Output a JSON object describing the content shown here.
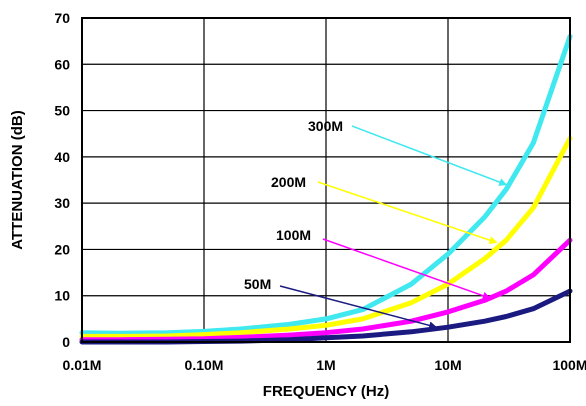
{
  "chart_data": {
    "type": "line",
    "title": "",
    "xlabel": "FREQUENCY (Hz)",
    "ylabel": "ATTENUATION (dB)",
    "x_scale": "log",
    "x_ticks": [
      0.01,
      0.1,
      1,
      10,
      100
    ],
    "x_tick_labels": [
      "0.01M",
      "0.10M",
      "1M",
      "10M",
      "100M"
    ],
    "xlim": [
      0.01,
      100
    ],
    "y_ticks": [
      0,
      10,
      20,
      30,
      40,
      50,
      60,
      70
    ],
    "y_tick_labels": [
      "0",
      "10",
      "20",
      "30",
      "40",
      "50",
      "60",
      "70"
    ],
    "ylim": [
      0,
      70
    ],
    "grid": true,
    "legend": "none",
    "annotations_comment": "curve labels with arrows",
    "series": [
      {
        "name": "300M",
        "color": "#40E8F0",
        "x": [
          0.01,
          0.02,
          0.05,
          0.1,
          0.2,
          0.5,
          1,
          2,
          5,
          10,
          20,
          30,
          50,
          100
        ],
        "y": [
          2,
          1.9,
          2,
          2.3,
          2.8,
          3.8,
          5,
          7,
          12.5,
          19,
          27,
          33,
          43,
          66
        ]
      },
      {
        "name": "200M",
        "color": "#FFFF00",
        "x": [
          0.01,
          0.02,
          0.05,
          0.1,
          0.2,
          0.5,
          1,
          2,
          5,
          10,
          20,
          30,
          50,
          100
        ],
        "y": [
          1.2,
          1.2,
          1.3,
          1.6,
          2,
          2.8,
          3.6,
          5,
          8.5,
          12.5,
          18,
          22,
          29,
          44
        ]
      },
      {
        "name": "100M",
        "color": "#FF00FF",
        "x": [
          0.01,
          0.02,
          0.05,
          0.1,
          0.2,
          0.5,
          1,
          2,
          5,
          10,
          20,
          30,
          50,
          100
        ],
        "y": [
          0.5,
          0.5,
          0.6,
          0.7,
          1,
          1.5,
          2,
          2.8,
          4.5,
          6.5,
          9,
          11,
          14.5,
          22
        ]
      },
      {
        "name": "50M",
        "color": "#1A1A80",
        "x": [
          0.01,
          0.02,
          0.05,
          0.1,
          0.2,
          0.5,
          1,
          2,
          5,
          10,
          20,
          30,
          50,
          100
        ],
        "y": [
          0,
          0,
          0,
          0.1,
          0.2,
          0.5,
          0.9,
          1.3,
          2.2,
          3.2,
          4.5,
          5.5,
          7.2,
          11
        ]
      }
    ],
    "annotations": [
      {
        "text": "300M",
        "color": "#40E8F0",
        "target_x": 30,
        "target_y": 34
      },
      {
        "text": "200M",
        "color": "#FFFF00",
        "target_x": 25,
        "target_y": 21.5
      },
      {
        "text": "100M",
        "color": "#FF00FF",
        "target_x": 22,
        "target_y": 9.5
      },
      {
        "text": "50M",
        "color": "#1A1A80",
        "target_x": 8,
        "target_y": 3.2
      }
    ]
  }
}
